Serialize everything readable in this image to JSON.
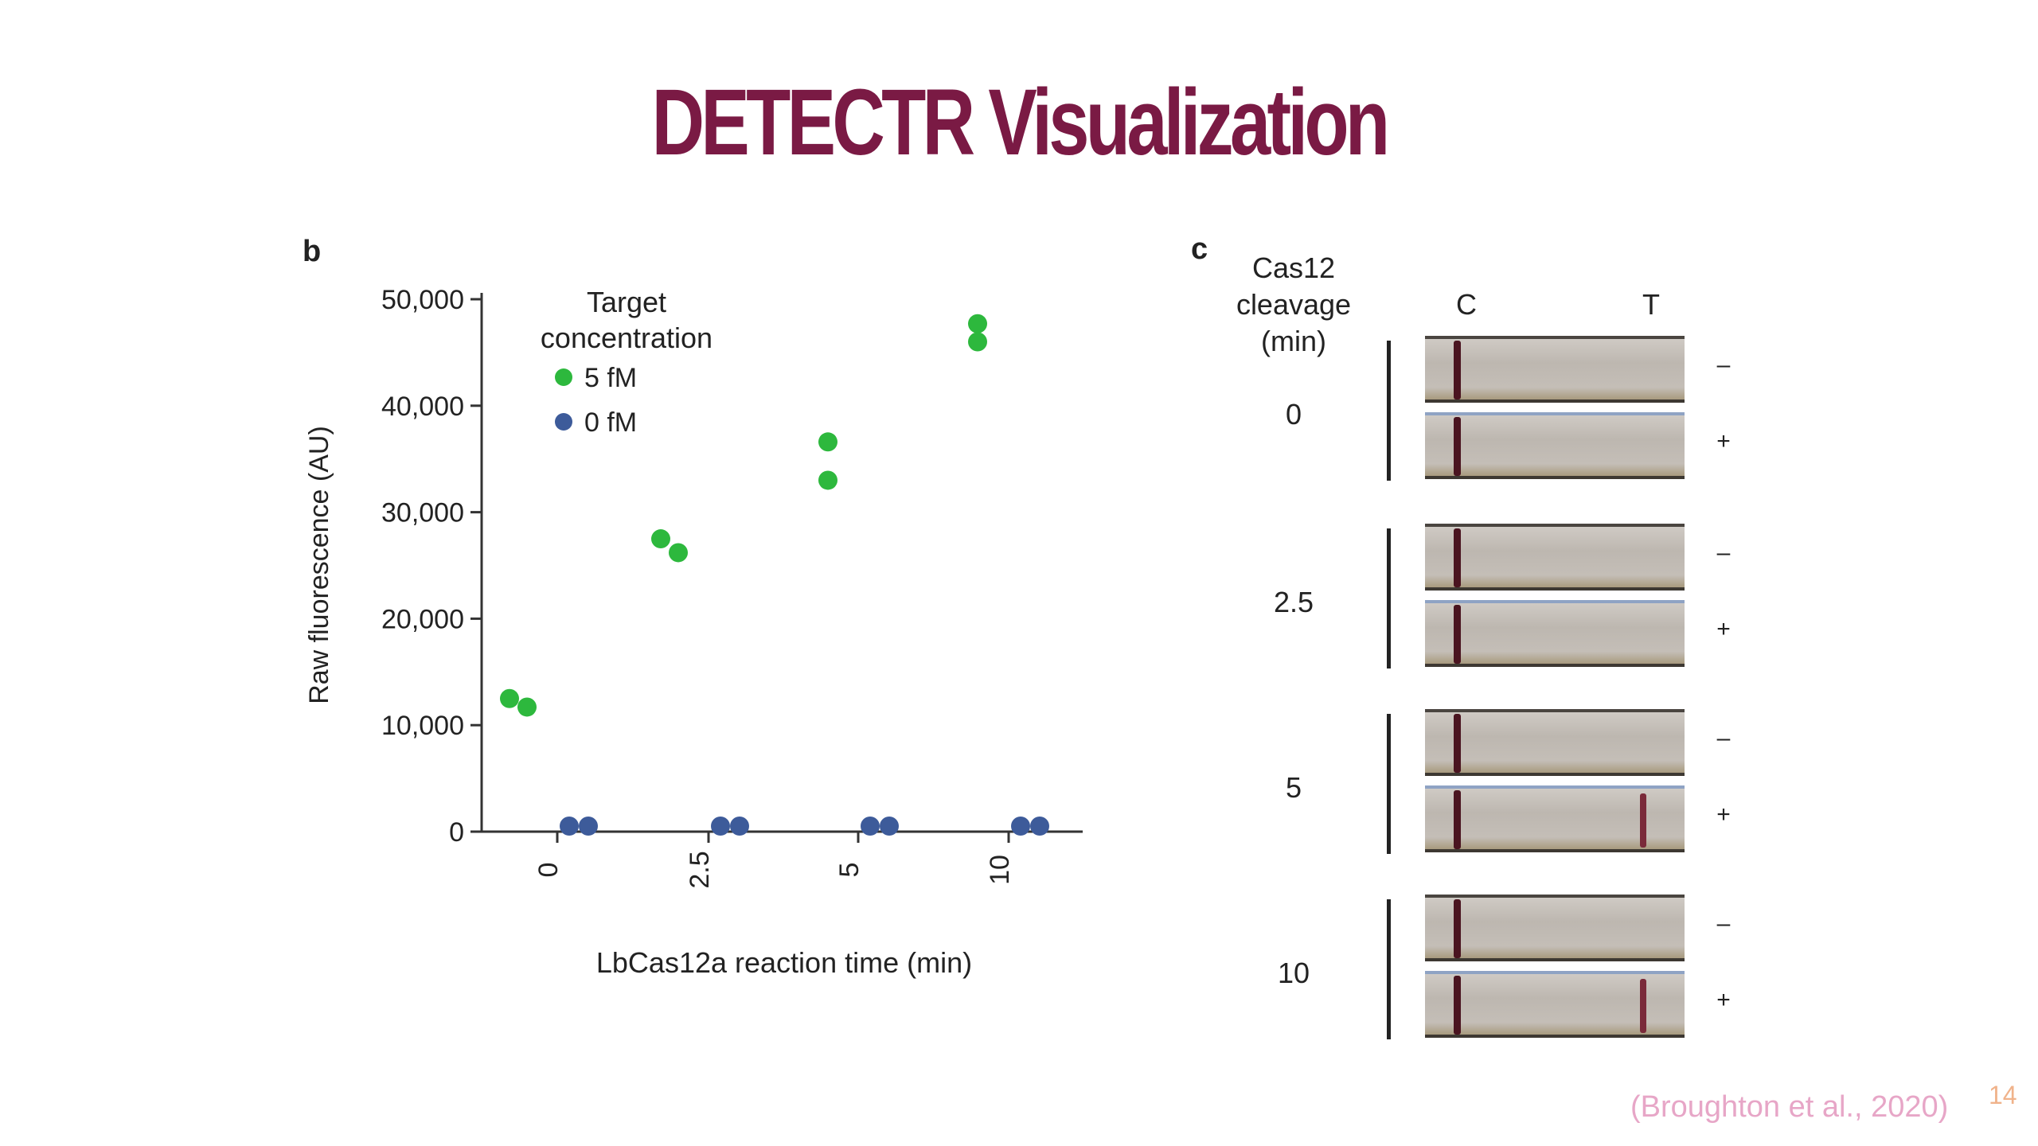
{
  "slide": {
    "title": "DETECTR Visualization",
    "citation": "(Broughton et al., 2020)",
    "page_number": "14"
  },
  "chart_data": {
    "type": "scatter",
    "panel_label": "b",
    "xlabel": "LbCas12a reaction time (min)",
    "ylabel": "Raw fluorescence (AU)",
    "categories": [
      "0",
      "2.5",
      "5",
      "10"
    ],
    "ylim": [
      0,
      50000
    ],
    "y_ticks": [
      0,
      10000,
      20000,
      30000,
      40000,
      50000
    ],
    "y_tick_labels": [
      "0",
      "10,000",
      "20,000",
      "30,000",
      "40,000",
      "50,000"
    ],
    "legend_title": "Target concentration",
    "legend_position": "top-left",
    "grid": false,
    "series": [
      {
        "name": "5 fM",
        "color": "#2db83d",
        "points": [
          {
            "category": "0",
            "values": [
              12500,
              11700
            ]
          },
          {
            "category": "2.5",
            "values": [
              27500,
              26200
            ]
          },
          {
            "category": "5",
            "values": [
              36600,
              33000
            ]
          },
          {
            "category": "10",
            "values": [
              47700,
              46000
            ]
          }
        ]
      },
      {
        "name": "0 fM",
        "color": "#3d5b9a",
        "points": [
          {
            "category": "0",
            "values": [
              300,
              300
            ]
          },
          {
            "category": "2.5",
            "values": [
              300,
              300
            ]
          },
          {
            "category": "5",
            "values": [
              300,
              300
            ]
          },
          {
            "category": "10",
            "values": [
              300,
              300
            ]
          }
        ]
      }
    ]
  },
  "strip_panel": {
    "panel_label": "c",
    "header_lines": [
      "Cas12",
      "cleavage",
      "(min)"
    ],
    "col_c": "C",
    "col_t": "T",
    "groups": [
      {
        "time": "0",
        "minus": "–",
        "plus": "+",
        "t_band_minus": false,
        "t_band_plus": false
      },
      {
        "time": "2.5",
        "minus": "–",
        "plus": "+",
        "t_band_minus": false,
        "t_band_plus": false
      },
      {
        "time": "5",
        "minus": "–",
        "plus": "+",
        "t_band_minus": false,
        "t_band_plus": true
      },
      {
        "time": "10",
        "minus": "–",
        "plus": "+",
        "t_band_minus": false,
        "t_band_plus": true
      }
    ]
  }
}
